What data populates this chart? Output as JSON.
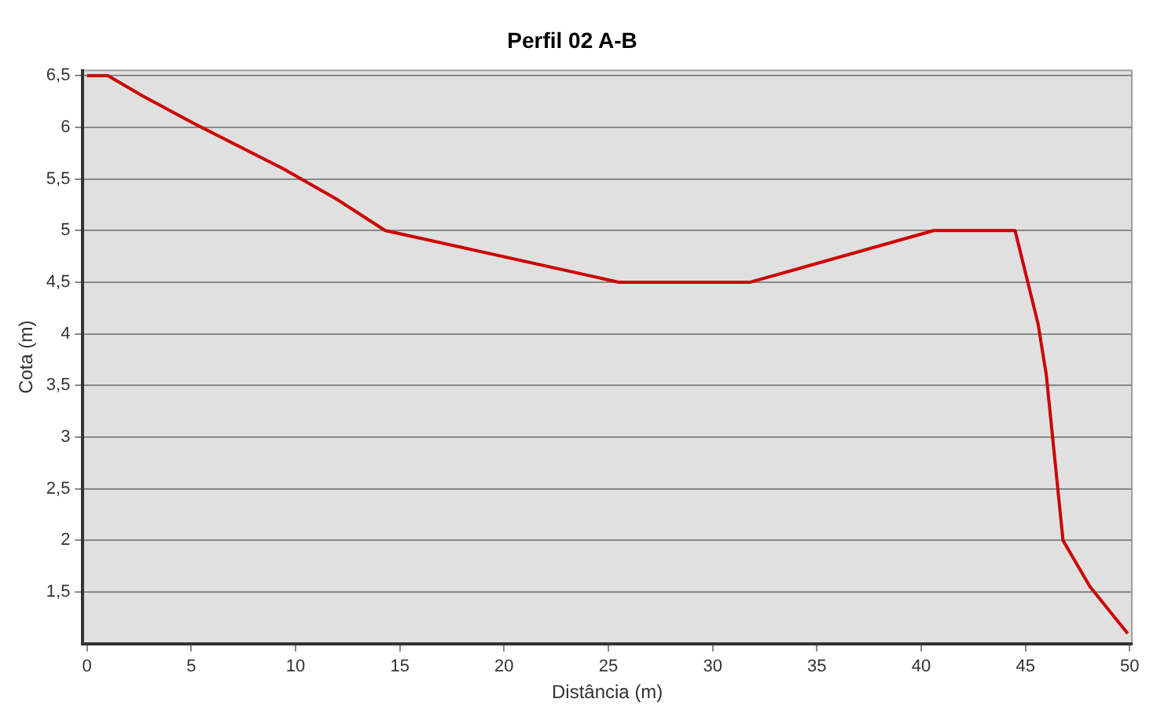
{
  "chart_data": {
    "type": "line",
    "title": "Perfil 02 A-B",
    "xlabel": "Distância (m)",
    "ylabel": "Cota (m)",
    "x": [
      0,
      1,
      2.7,
      5,
      9.4,
      12,
      14.3,
      15,
      25.5,
      31.8,
      40.6,
      44.5,
      45.6,
      46,
      46.8,
      48.1,
      49.9
    ],
    "series": [
      {
        "color": "#cc0000",
        "values": [
          6.5,
          6.5,
          6.3,
          6.05,
          5.6,
          5.3,
          5,
          4.97,
          4.5,
          4.5,
          5,
          5,
          4.1,
          3.6,
          2,
          1.55,
          1.1
        ]
      }
    ],
    "xlim": [
      -0.2,
      50.1
    ],
    "xticks": [
      0,
      5,
      10,
      15,
      20,
      25,
      30,
      35,
      40,
      45,
      50
    ],
    "ylim": [
      1,
      6.55
    ],
    "yticks": [
      {
        "value": 1.5,
        "label": "1,5"
      },
      2,
      {
        "value": 2.5,
        "label": "2,5"
      },
      3,
      {
        "value": 3.5,
        "label": "3,5"
      },
      4,
      {
        "value": 4.5,
        "label": "4,5"
      },
      5,
      {
        "value": 5.5,
        "label": "5,5"
      },
      6,
      {
        "value": 6.5,
        "label": "6,5"
      }
    ],
    "grid": "y",
    "legend": false,
    "marker": "none",
    "line_style": "solid"
  }
}
